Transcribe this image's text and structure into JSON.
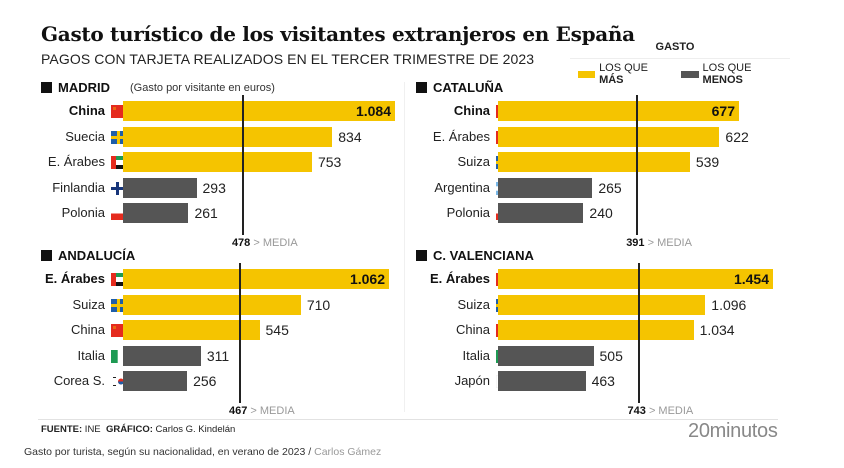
{
  "title": "Gasto turístico de los visitantes extranjeros en España",
  "subtitle": "PAGOS CON TARJETA REALIZADOS EN EL TERCER TRIMESTRE DE 2023",
  "legend": {
    "title": "GASTO",
    "more_prefix": "LOS QUE ",
    "more_bold": "MÁS",
    "less_prefix": "LOS QUE ",
    "less_bold": "MENOS"
  },
  "colors": {
    "more": "#f5c400",
    "less": "#555555"
  },
  "unit_note": "(Gasto por visitante en euros)",
  "media_suffix": "> MEDIA",
  "footer": {
    "source_label": "FUENTE:",
    "source_value": " INE ",
    "graphic_label": "GRÁFICO:",
    "graphic_value": " Carlos G. Kindelán",
    "brand": "20minutos"
  },
  "caption": {
    "text": "Gasto por turista, según su nacionalidad, en verano de 2023 / ",
    "credit": "Carlos Gámez"
  },
  "chart_data": [
    {
      "type": "bar",
      "title": "MADRID",
      "categories": [
        "China",
        "Suecia",
        "E. Árabes",
        "Finlandia",
        "Polonia"
      ],
      "flags": [
        "china",
        "sweden",
        "uae",
        "finland",
        "poland"
      ],
      "values": [
        1084,
        834,
        753,
        293,
        261
      ],
      "labels": [
        "1.084",
        "834",
        "753",
        "293",
        "261"
      ],
      "groups": [
        "more",
        "more",
        "more",
        "less",
        "less"
      ],
      "media": 478,
      "xlim": [
        0,
        1084
      ]
    },
    {
      "type": "bar",
      "title": "CATALUÑA",
      "categories": [
        "China",
        "E. Árabes",
        "Suiza",
        "Argentina",
        "Polonia"
      ],
      "flags": [
        "china",
        "uae",
        "sweden",
        "argentina",
        "poland"
      ],
      "values": [
        677,
        622,
        539,
        265,
        240
      ],
      "labels": [
        "677",
        "622",
        "539",
        "265",
        "240"
      ],
      "groups": [
        "more",
        "more",
        "more",
        "less",
        "less"
      ],
      "media": 391,
      "xlim": [
        0,
        677
      ]
    },
    {
      "type": "bar",
      "title": "ANDALUCÍA",
      "categories": [
        "E. Árabes",
        "Suiza",
        "China",
        "Italia",
        "Corea S."
      ],
      "flags": [
        "uae",
        "sweden",
        "china",
        "italy",
        "korea"
      ],
      "values": [
        1062,
        710,
        545,
        311,
        256
      ],
      "labels": [
        "1.062",
        "710",
        "545",
        "311",
        "256"
      ],
      "groups": [
        "more",
        "more",
        "more",
        "less",
        "less"
      ],
      "media": 467,
      "xlim": [
        0,
        1062
      ]
    },
    {
      "type": "bar",
      "title": "C. VALENCIANA",
      "categories": [
        "E. Árabes",
        "Suiza",
        "China",
        "Italia",
        "Japón"
      ],
      "flags": [
        "uae",
        "sweden",
        "china",
        "italy",
        "japan"
      ],
      "values": [
        1454,
        1096,
        1034,
        505,
        463
      ],
      "labels": [
        "1.454",
        "1.096",
        "1.034",
        "505",
        "463"
      ],
      "groups": [
        "more",
        "more",
        "more",
        "less",
        "less"
      ],
      "media": 743,
      "xlim": [
        0,
        1454
      ]
    }
  ]
}
